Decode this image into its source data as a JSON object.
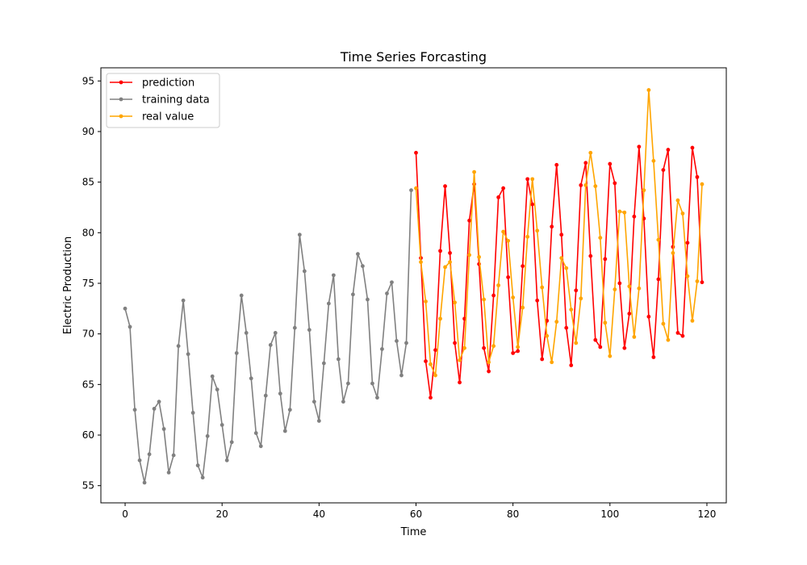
{
  "chart_data": {
    "type": "line",
    "title": "Time Series Forcasting",
    "xlabel": "Time",
    "ylabel": "Electric Production",
    "xlim": [
      -5,
      124
    ],
    "ylim": [
      53.3,
      96.3
    ],
    "xticks": [
      0,
      20,
      40,
      60,
      80,
      100,
      120
    ],
    "yticks": [
      55,
      60,
      65,
      70,
      75,
      80,
      85,
      90,
      95
    ],
    "grid": false,
    "legend_position": "top-left",
    "series": [
      {
        "name": "prediction",
        "color": "#ff0000",
        "x_start": 60,
        "values": [
          87.9,
          77.5,
          67.3,
          63.7,
          68.4,
          78.2,
          84.6,
          78.0,
          69.1,
          65.2,
          71.5,
          81.2,
          84.8,
          76.9,
          68.6,
          66.3,
          73.8,
          83.5,
          84.4,
          75.6,
          68.1,
          68.3,
          76.7,
          85.3,
          82.8,
          73.3,
          67.5,
          71.3,
          80.6,
          86.7,
          79.8,
          70.6,
          66.9,
          74.3,
          84.7,
          86.9,
          77.7,
          69.4,
          68.7,
          77.4,
          86.8,
          84.9,
          75.0,
          68.6,
          72.0,
          81.6,
          88.5,
          81.4,
          71.7,
          67.7,
          75.4,
          86.2,
          88.2,
          78.6,
          70.1,
          69.8,
          79.0,
          88.4,
          85.5,
          75.1
        ]
      },
      {
        "name": "training data",
        "color": "#808080",
        "x_start": 0,
        "values": [
          72.5,
          70.7,
          62.5,
          57.5,
          55.3,
          58.1,
          62.6,
          63.3,
          60.6,
          56.3,
          58.0,
          68.8,
          73.3,
          68.0,
          62.2,
          57.0,
          55.8,
          59.9,
          65.8,
          64.5,
          61.0,
          57.5,
          59.3,
          68.1,
          73.8,
          70.1,
          65.6,
          60.2,
          58.9,
          63.9,
          68.9,
          70.1,
          64.1,
          60.4,
          62.5,
          70.6,
          79.8,
          76.2,
          70.4,
          63.3,
          61.4,
          67.1,
          73.0,
          75.8,
          67.5,
          63.3,
          65.1,
          73.9,
          77.9,
          76.7,
          73.4,
          65.1,
          63.7,
          68.5,
          74.0,
          75.1,
          69.3,
          65.9,
          69.1,
          84.2
        ]
      },
      {
        "name": "real value",
        "color": "#ffa500",
        "x_start": 60,
        "values": [
          84.4,
          77.1,
          73.2,
          67.0,
          65.9,
          71.5,
          76.6,
          77.1,
          73.1,
          67.4,
          68.6,
          77.8,
          86.0,
          77.6,
          73.4,
          67.2,
          68.8,
          74.8,
          80.1,
          79.2,
          73.6,
          68.7,
          72.6,
          79.6,
          85.3,
          80.2,
          74.6,
          69.8,
          67.2,
          71.2,
          77.5,
          76.5,
          72.4,
          69.1,
          73.5,
          84.7,
          87.9,
          84.6,
          79.5,
          71.1,
          67.8,
          74.4,
          82.1,
          82.0,
          74.7,
          69.7,
          74.5,
          84.2,
          94.1,
          87.1,
          79.3,
          71.0,
          69.4,
          78.0,
          83.2,
          81.9,
          75.7,
          71.3,
          75.2,
          84.8
        ]
      }
    ]
  }
}
